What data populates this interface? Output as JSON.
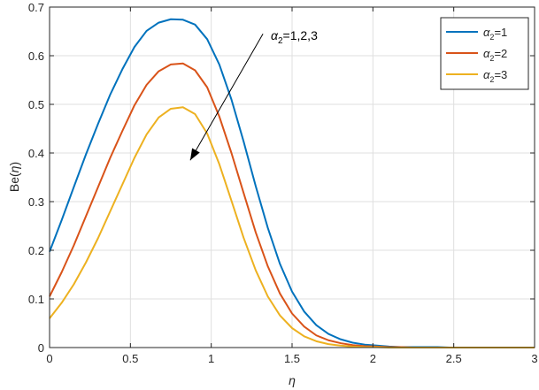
{
  "chart_data": {
    "type": "line",
    "title": "",
    "xlabel": "η",
    "ylabel_main": "Be(",
    "ylabel_sym": "η",
    "ylabel_close": ")",
    "xlim": [
      0,
      3
    ],
    "ylim": [
      0,
      0.7
    ],
    "xticks": [
      0,
      0.5,
      1,
      1.5,
      2,
      2.5,
      3
    ],
    "yticks": [
      0,
      0.1,
      0.2,
      0.3,
      0.4,
      0.5,
      0.6,
      0.7
    ],
    "xtick_labels": [
      "0",
      "0.5",
      "1",
      "1.5",
      "2",
      "2.5",
      "3"
    ],
    "ytick_labels": [
      "0",
      "0.1",
      "0.2",
      "0.3",
      "0.4",
      "0.5",
      "0.6",
      "0.7"
    ],
    "grid": true,
    "legend_position": "top-right",
    "x": [
      0,
      0.075,
      0.15,
      0.225,
      0.3,
      0.375,
      0.45,
      0.525,
      0.6,
      0.675,
      0.75,
      0.825,
      0.9,
      0.975,
      1.05,
      1.125,
      1.2,
      1.275,
      1.35,
      1.425,
      1.5,
      1.575,
      1.65,
      1.725,
      1.8,
      1.875,
      1.95,
      2.025,
      2.1,
      2.175,
      2.25,
      2.325,
      2.4,
      2.475,
      2.55,
      2.625,
      2.7,
      2.775,
      2.85,
      2.925,
      3
    ],
    "series": [
      {
        "name_sym": "α",
        "name_sub": "2",
        "name_val": "=1",
        "color": "#0072BD",
        "values": [
          0.197,
          0.262,
          0.33,
          0.397,
          0.46,
          0.52,
          0.572,
          0.618,
          0.651,
          0.668,
          0.675,
          0.674,
          0.664,
          0.634,
          0.582,
          0.51,
          0.424,
          0.332,
          0.246,
          0.172,
          0.115,
          0.074,
          0.046,
          0.028,
          0.017,
          0.01,
          0.006,
          0.004,
          0.002,
          0.001,
          0.001,
          0.001,
          0.001,
          0,
          0,
          0,
          0,
          0,
          0,
          0,
          0
        ]
      },
      {
        "name_sym": "α",
        "name_sub": "2",
        "name_val": "=2",
        "color": "#D95319",
        "values": [
          0.105,
          0.155,
          0.21,
          0.27,
          0.33,
          0.39,
          0.445,
          0.498,
          0.54,
          0.568,
          0.582,
          0.584,
          0.57,
          0.535,
          0.475,
          0.4,
          0.318,
          0.237,
          0.167,
          0.111,
          0.07,
          0.043,
          0.025,
          0.015,
          0.009,
          0.005,
          0.003,
          0.002,
          0.001,
          0.001,
          0,
          0,
          0,
          0,
          0,
          0,
          0,
          0,
          0,
          0,
          0
        ]
      },
      {
        "name_sym": "α",
        "name_sub": "2",
        "name_val": "=3",
        "color": "#EDB120",
        "values": [
          0.06,
          0.092,
          0.13,
          0.175,
          0.225,
          0.28,
          0.335,
          0.39,
          0.438,
          0.473,
          0.491,
          0.494,
          0.48,
          0.44,
          0.377,
          0.302,
          0.226,
          0.159,
          0.105,
          0.066,
          0.04,
          0.023,
          0.013,
          0.007,
          0.004,
          0.002,
          0.001,
          0.001,
          0,
          0,
          0,
          0,
          0,
          0,
          0,
          0,
          0,
          0,
          0,
          0,
          0
        ]
      }
    ],
    "annotation": {
      "sym": "α",
      "sub": "2",
      "text": "=1,2,3",
      "arrow_from": [
        1.32,
        0.645
      ],
      "arrow_to": [
        0.87,
        0.385
      ]
    }
  }
}
